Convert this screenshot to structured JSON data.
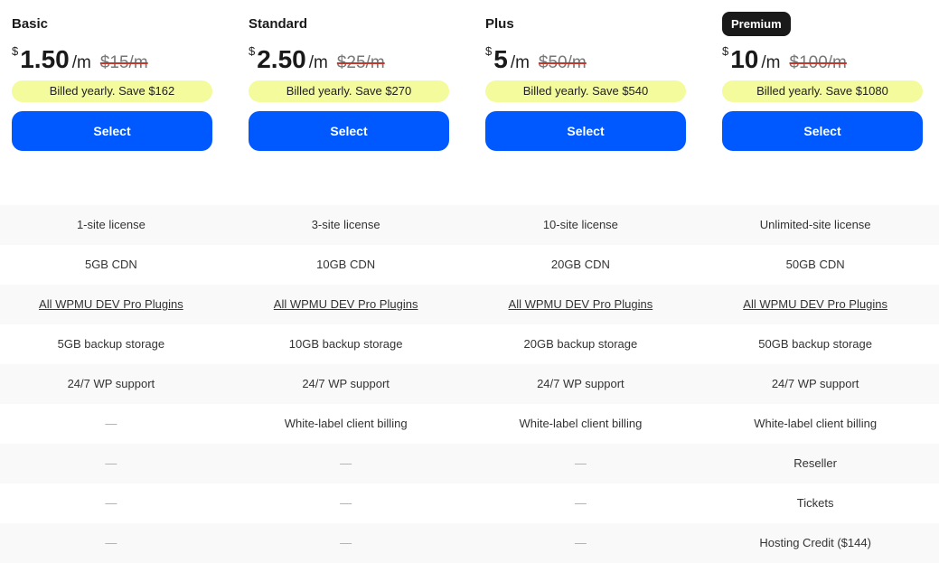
{
  "plans": [
    {
      "name": "Basic",
      "currency": "$",
      "price": "1.50",
      "per": "/m",
      "old_price": "$15/m",
      "save": "Billed yearly. Save  $162",
      "select": "Select"
    },
    {
      "name": "Standard",
      "currency": "$",
      "price": "2.50",
      "per": "/m",
      "old_price": "$25/m",
      "save": "Billed yearly. Save  $270",
      "select": "Select"
    },
    {
      "name": "Plus",
      "currency": "$",
      "price": "5",
      "per": "/m",
      "old_price": "$50/m",
      "save": "Billed yearly. Save  $540",
      "select": "Select"
    },
    {
      "name": "Premium",
      "currency": "$",
      "price": "10",
      "per": "/m",
      "old_price": "$100/m",
      "save": "Billed yearly. Save  $1080",
      "select": "Select",
      "badge": true
    }
  ],
  "colors": {
    "accent": "#0059ff",
    "save_bg": "#f4fb9c",
    "badge_bg": "#1a1a1a"
  },
  "features": [
    [
      "1-site license",
      "3-site license",
      "10-site license",
      "Unlimited-site license"
    ],
    [
      "5GB CDN",
      "10GB CDN",
      "20GB CDN",
      "50GB CDN"
    ],
    [
      "All WPMU DEV Pro Plugins",
      "All WPMU DEV Pro Plugins",
      "All WPMU DEV Pro Plugins",
      "All WPMU DEV Pro Plugins"
    ],
    [
      "5GB backup storage",
      "10GB backup storage",
      "20GB backup storage",
      "50GB backup storage"
    ],
    [
      "24/7 WP support",
      "24/7 WP support",
      "24/7 WP support",
      "24/7 WP support"
    ],
    [
      "—",
      "White-label client billing",
      "White-label client billing",
      "White-label client billing"
    ],
    [
      "—",
      "—",
      "—",
      "Reseller"
    ],
    [
      "—",
      "—",
      "—",
      "Tickets"
    ],
    [
      "—",
      "—",
      "—",
      "Hosting Credit ($144)"
    ]
  ]
}
